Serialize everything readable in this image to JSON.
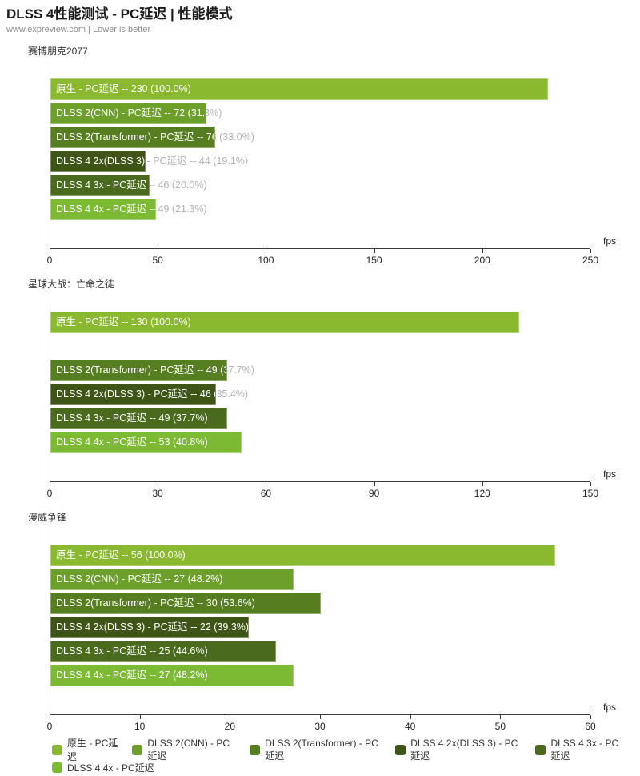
{
  "header": {
    "title": "DLSS 4性能测试 - PC延迟 | 性能模式",
    "subtitle": "www.expreview.com | Lower is better"
  },
  "colors": {
    "series": [
      "#8ab82e",
      "#6ca02a",
      "#567e20",
      "#3f5518",
      "#4a6b1d",
      "#7cba33"
    ],
    "axis_line": "#3a3a3a",
    "plot_border": "#8a8a8a",
    "bar_label_inside": "#ffffff",
    "bar_label_outside": "#b4b4b4",
    "tick_label": "#222222"
  },
  "axis_unit_label": "fps",
  "chart_data": [
    {
      "type": "bar",
      "title": "赛博朋克2077",
      "xlabel": "fps",
      "xlim": [
        0,
        250
      ],
      "ticks": [
        0,
        50,
        100,
        150,
        200,
        250
      ],
      "bars": [
        {
          "label": "原生 - PC延迟",
          "value": 230,
          "percent": "100.0%",
          "display": "原生 - PC延迟  --  230 (100.0%)"
        },
        {
          "label": "DLSS 2(CNN) - PC延迟",
          "value": 72,
          "percent": "31.3%",
          "display": "DLSS 2(CNN)  -  PC延迟  --  72 (31.3%)"
        },
        {
          "label": "DLSS 2(Transformer) - PC延迟",
          "value": 76,
          "percent": "33.0%",
          "display": "DLSS 2(Transformer) - PC延迟  --  76 (33.0%)"
        },
        {
          "label": "DLSS 4 2x(DLSS 3) - PC延迟",
          "value": 44,
          "percent": "19.1%",
          "display": "DLSS 4 2x(DLSS 3)  -  PC延迟  --  44 (19.1%)"
        },
        {
          "label": "DLSS 4 3x - PC延迟",
          "value": 46,
          "percent": "20.0%",
          "display": "DLSS 4 3x  -  PC延迟  --  46 (20.0%)"
        },
        {
          "label": "DLSS 4 4x - PC延迟",
          "value": 49,
          "percent": "21.3%",
          "display": "DLSS 4 4x  -  PC延迟  --  49 (21.3%)"
        }
      ]
    },
    {
      "type": "bar",
      "title": "星球大战：亡命之徒",
      "xlabel": "fps",
      "xlim": [
        0,
        150
      ],
      "ticks": [
        0,
        30,
        60,
        90,
        120,
        150
      ],
      "bars": [
        {
          "label": "原生 - PC延迟",
          "value": 130,
          "percent": "100.0%",
          "display": "原生 - PC延迟  --  130 (100.0%)"
        },
        {
          "label": "DLSS 2(CNN) - PC延迟",
          "value": null,
          "percent": null,
          "display": ""
        },
        {
          "label": "DLSS 2(Transformer) - PC延迟",
          "value": 49,
          "percent": "37.7%",
          "display": "DLSS 2(Transformer) - PC延迟  --  49 (37.7%)"
        },
        {
          "label": "DLSS 4 2x(DLSS 3) - PC延迟",
          "value": 46,
          "percent": "35.4%",
          "display": "DLSS 4 2x(DLSS 3)  -  PC延迟  --  46 (35.4%)"
        },
        {
          "label": "DLSS 4 3x - PC延迟",
          "value": 49,
          "percent": "37.7%",
          "display": "DLSS 4 3x  -  PC延迟  --  49 (37.7%)"
        },
        {
          "label": "DLSS 4 4x - PC延迟",
          "value": 53,
          "percent": "40.8%",
          "display": "DLSS 4 4x  -  PC延迟  --  53 (40.8%)"
        }
      ]
    },
    {
      "type": "bar",
      "title": "漫威争锋",
      "xlabel": "fps",
      "xlim": [
        0,
        60
      ],
      "ticks": [
        0,
        10,
        20,
        30,
        40,
        50,
        60
      ],
      "bars": [
        {
          "label": "原生 - PC延迟",
          "value": 56,
          "percent": "100.0%",
          "display": "原生 - PC延迟  --  56 (100.0%)"
        },
        {
          "label": "DLSS 2(CNN) - PC延迟",
          "value": 27,
          "percent": "48.2%",
          "display": "DLSS 2(CNN)  -  PC延迟  --  27 (48.2%)"
        },
        {
          "label": "DLSS 2(Transformer) - PC延迟",
          "value": 30,
          "percent": "53.6%",
          "display": "DLSS 2(Transformer) - PC延迟  --  30 (53.6%)"
        },
        {
          "label": "DLSS 4 2x(DLSS 3) - PC延迟",
          "value": 22,
          "percent": "39.3%",
          "display": "DLSS 4 2x(DLSS 3)  -  PC延迟  --  22 (39.3%)"
        },
        {
          "label": "DLSS 4 3x - PC延迟",
          "value": 25,
          "percent": "44.6%",
          "display": "DLSS 4 3x  -  PC延迟  --  25 (44.6%)"
        },
        {
          "label": "DLSS 4 4x - PC延迟",
          "value": 27,
          "percent": "48.2%",
          "display": "DLSS 4 4x  -  PC延迟  --  27 (48.2%)"
        }
      ]
    }
  ],
  "legend": {
    "wrap_after": 5,
    "items": [
      {
        "label": "原生 - PC延迟",
        "color_index": 0
      },
      {
        "label": "DLSS 2(CNN)  -  PC延迟",
        "color_index": 1
      },
      {
        "label": "DLSS 2(Transformer) - PC延迟",
        "color_index": 2
      },
      {
        "label": "DLSS 4 2x(DLSS 3)  -  PC延迟",
        "color_index": 3
      },
      {
        "label": "DLSS 4 3x  -  PC延迟",
        "color_index": 4
      },
      {
        "label": "DLSS 4 4x  -  PC延迟",
        "color_index": 5
      }
    ]
  }
}
